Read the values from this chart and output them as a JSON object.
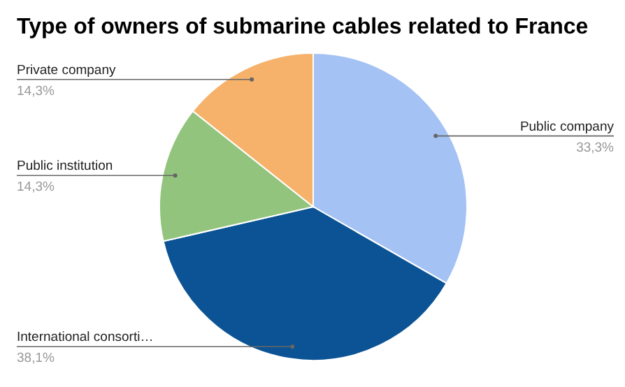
{
  "chart_data": {
    "type": "pie",
    "title": "Type of owners of submarine cables related to France",
    "categories": [
      "Public company",
      "International consorti…",
      "Public institution",
      "Private company"
    ],
    "values": [
      33.3,
      38.1,
      14.3,
      14.3
    ],
    "value_labels": [
      "33,3%",
      "38,1%",
      "14,3%",
      "14,3%"
    ],
    "colors": [
      "#a4c2f4",
      "#0b5394",
      "#93c47d",
      "#f6b26b"
    ],
    "legend": false
  }
}
